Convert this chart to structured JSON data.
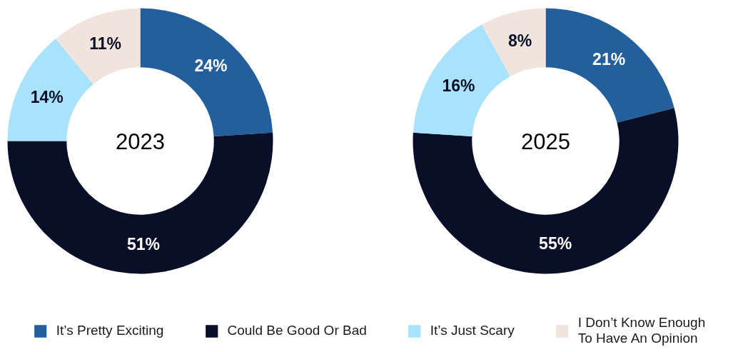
{
  "chart_data": {
    "type": "donut",
    "categories": [
      "It’s Pretty Exciting",
      "Could Be Good Or Bad",
      "It’s Just Scary",
      "I Don’t Know Enough To Have An Opinion"
    ],
    "colors": [
      "#235f9c",
      "#0a0f28",
      "#a9e2fb",
      "#f0e4dd"
    ],
    "legend": "bottom",
    "series": [
      {
        "name": "2023",
        "values": [
          24,
          51,
          14,
          11
        ],
        "value_labels": [
          "24%",
          "51%",
          "14%",
          "11%"
        ]
      },
      {
        "name": "2025",
        "values": [
          21,
          55,
          16,
          8
        ],
        "value_labels": [
          "21%",
          "55%",
          "16%",
          "8%"
        ]
      }
    ]
  }
}
